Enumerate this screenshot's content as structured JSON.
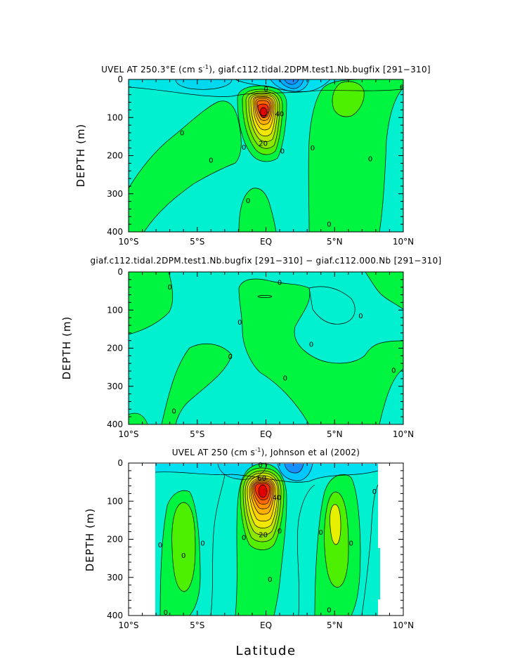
{
  "chart_data": [
    {
      "type": "contour",
      "title_parts": [
        "UVEL AT 250.3°E (cm s",
        "-1",
        "), giaf.c112.tidal.2DPM.test1.Nb.bugfix [291−310]"
      ],
      "ylabel": "DEPTH (m)",
      "xlabel": "",
      "xlim": [
        -10,
        10
      ],
      "ylim": [
        400,
        0
      ],
      "xticks": [
        "10°S",
        "5°S",
        "EQ",
        "5°N",
        "10°N"
      ],
      "yticks": [
        "0",
        "100",
        "200",
        "300",
        "400"
      ],
      "contour_labels": [
        {
          "text": "0",
          "lat": -6.1,
          "depth": 140
        },
        {
          "text": "0",
          "lat": -4.0,
          "depth": 212
        },
        {
          "text": "0",
          "lat": -1.6,
          "depth": 178
        },
        {
          "text": "0",
          "lat": -1.3,
          "depth": 318
        },
        {
          "text": "0",
          "lat": 1.2,
          "depth": 188
        },
        {
          "text": "0",
          "lat": 3.4,
          "depth": 180
        },
        {
          "text": "0",
          "lat": 4.6,
          "depth": 380
        },
        {
          "text": "0",
          "lat": 7.6,
          "depth": 208
        },
        {
          "text": "0",
          "lat": 9.9,
          "depth": 20
        },
        {
          "text": "0",
          "lat": 0.0,
          "depth": 25
        },
        {
          "text": "20",
          "lat": -0.2,
          "depth": 168
        },
        {
          "text": "40",
          "lat": 1.0,
          "depth": 90
        }
      ],
      "features": [
        {
          "kind": "jet",
          "lat": 0.0,
          "depth": 90,
          "peak": 80,
          "sign": "east"
        },
        {
          "kind": "surface_westward",
          "lat_range": [
            -10,
            10
          ],
          "depth_range": [
            0,
            40
          ]
        },
        {
          "kind": "westward_core",
          "lat": 2.5,
          "depth": 15
        }
      ]
    },
    {
      "type": "contour",
      "title_parts": [
        "giaf.c112.tidal.2DPM.test1.Nb.bugfix [291−310] − giaf.c112.000.Nb [291−310]",
        "",
        ""
      ],
      "ylabel": "DEPTH (m)",
      "xlabel": "",
      "xlim": [
        -10,
        10
      ],
      "ylim": [
        400,
        0
      ],
      "xticks": [
        "10°S",
        "5°S",
        "EQ",
        "5°N",
        "10°N"
      ],
      "yticks": [
        "0",
        "100",
        "200",
        "300",
        "400"
      ],
      "contour_labels": [
        {
          "text": "0",
          "lat": -7.0,
          "depth": 40
        },
        {
          "text": "0",
          "lat": -1.9,
          "depth": 132
        },
        {
          "text": "0",
          "lat": -2.6,
          "depth": 222
        },
        {
          "text": "0",
          "lat": 1.0,
          "depth": 28
        },
        {
          "text": "0",
          "lat": 1.4,
          "depth": 278
        },
        {
          "text": "0",
          "lat": 3.3,
          "depth": 190
        },
        {
          "text": "0",
          "lat": 6.9,
          "depth": 115
        },
        {
          "text": "0",
          "lat": 9.3,
          "depth": 258
        },
        {
          "text": "0",
          "lat": -6.7,
          "depth": 365
        }
      ]
    },
    {
      "type": "contour",
      "title_parts": [
        "UVEL AT 250 (cm s",
        "-1",
        "), Johnson et al (2002)"
      ],
      "ylabel": "DEPTH (m)",
      "xlabel": "Latitude",
      "xlim": [
        -10,
        10
      ],
      "ylim": [
        400,
        0
      ],
      "xticks": [
        "10°S",
        "5°S",
        "EQ",
        "5°N",
        "10°N"
      ],
      "yticks": [
        "0",
        "100",
        "200",
        "300",
        "400"
      ],
      "contour_labels": [
        {
          "text": "0",
          "lat": -7.7,
          "depth": 215
        },
        {
          "text": "0",
          "lat": -6.0,
          "depth": 242
        },
        {
          "text": "0",
          "lat": -4.6,
          "depth": 210
        },
        {
          "text": "0",
          "lat": -1.6,
          "depth": 195
        },
        {
          "text": "0",
          "lat": 1.0,
          "depth": 178
        },
        {
          "text": "0",
          "lat": 0.3,
          "depth": 305
        },
        {
          "text": "0",
          "lat": 4.0,
          "depth": 182
        },
        {
          "text": "0",
          "lat": 6.2,
          "depth": 210
        },
        {
          "text": "0",
          "lat": 7.9,
          "depth": 75
        },
        {
          "text": "0",
          "lat": 4.6,
          "depth": 385
        },
        {
          "text": "0",
          "lat": -7.3,
          "depth": 392
        },
        {
          "text": "0",
          "lat": -0.4,
          "depth": 5
        },
        {
          "text": "20",
          "lat": -0.2,
          "depth": 188
        },
        {
          "text": "40",
          "lat": 0.8,
          "depth": 90
        },
        {
          "text": "60",
          "lat": -0.3,
          "depth": 40
        }
      ]
    }
  ]
}
